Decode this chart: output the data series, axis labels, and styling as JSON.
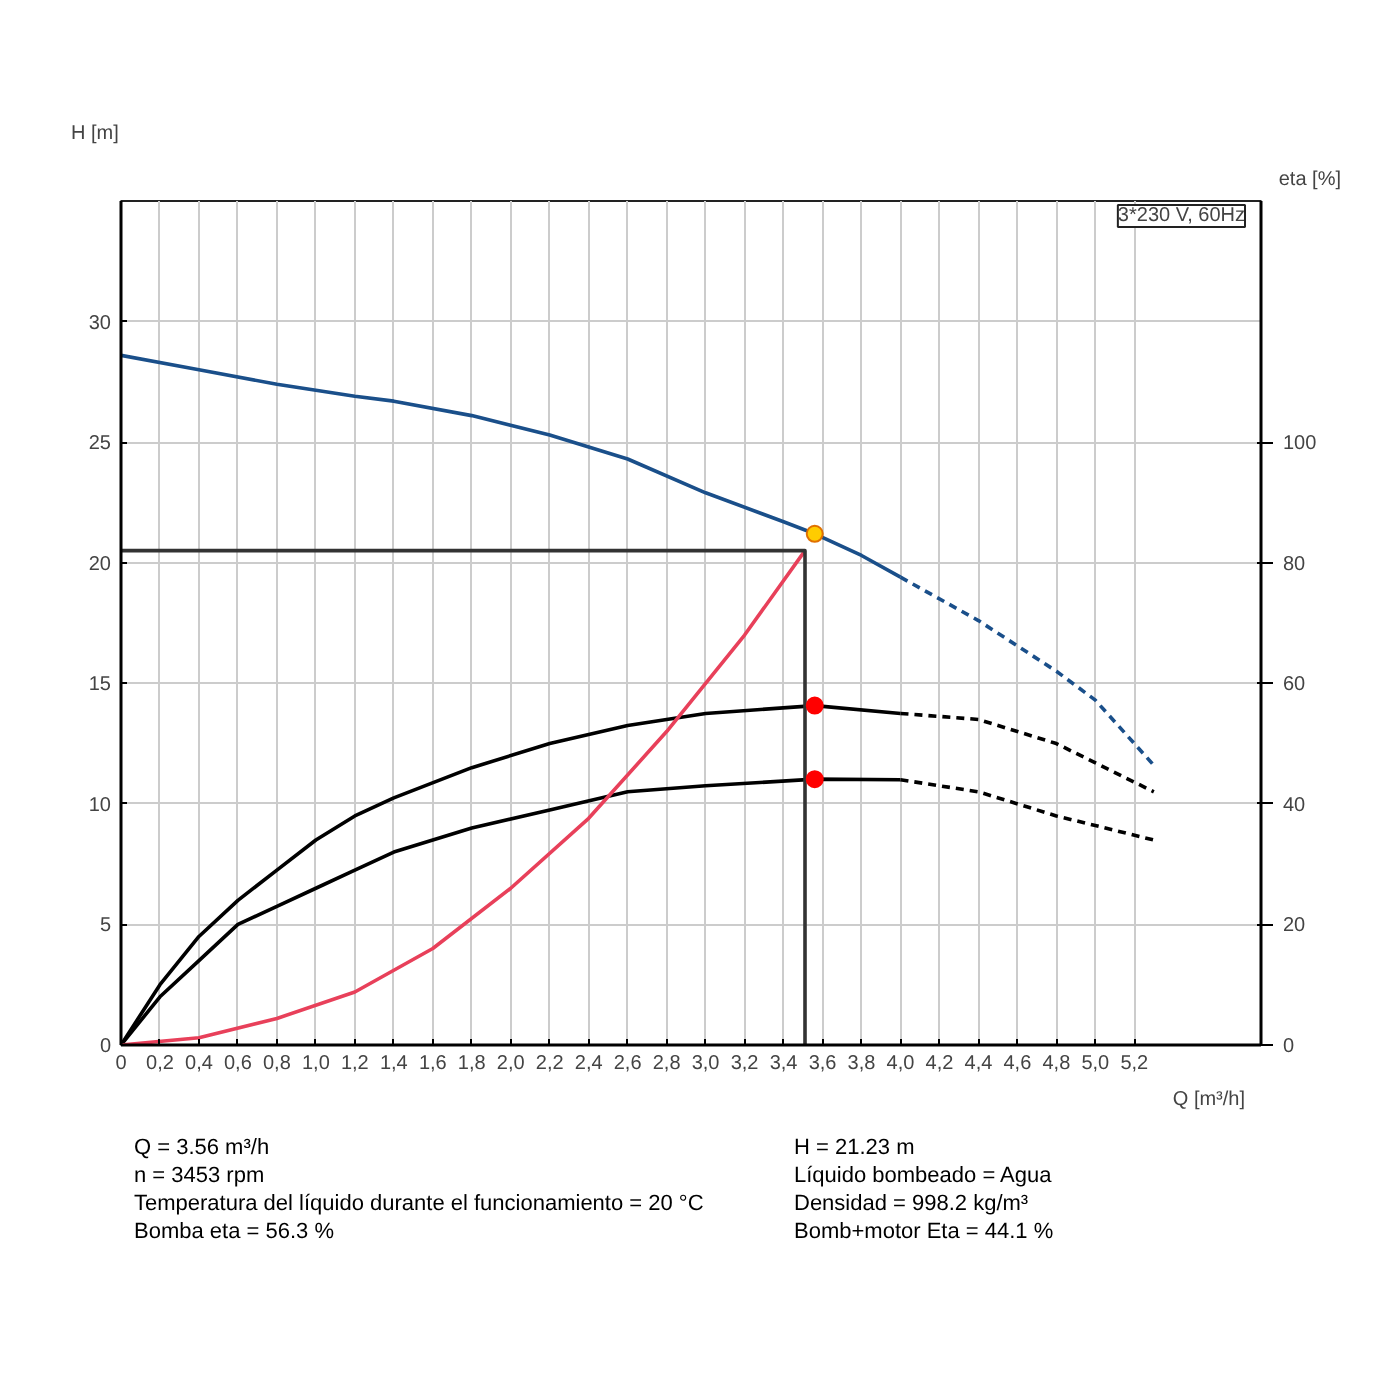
{
  "chart_data": {
    "type": "line",
    "xlabel": "Q [m³/h]",
    "ylabel": "H [m]",
    "y2label": "eta [%]",
    "xlim": [
      0,
      5.85
    ],
    "xticks": [
      0,
      {
        "value": 0.2,
        "label": "0,2"
      },
      {
        "value": 0.4,
        "label": "0,4"
      },
      {
        "value": 0.6,
        "label": "0,6"
      },
      {
        "value": 0.8,
        "label": "0,8"
      },
      {
        "value": 1.0,
        "label": "1,0"
      },
      {
        "value": 1.2,
        "label": "1,2"
      },
      {
        "value": 1.4,
        "label": "1,4"
      },
      {
        "value": 1.6,
        "label": "1,6"
      },
      {
        "value": 1.8,
        "label": "1,8"
      },
      {
        "value": 2.0,
        "label": "2,0"
      },
      {
        "value": 2.2,
        "label": "2,2"
      },
      {
        "value": 2.4,
        "label": "2,4"
      },
      {
        "value": 2.6,
        "label": "2,6"
      },
      {
        "value": 2.8,
        "label": "2,8"
      },
      {
        "value": 3.0,
        "label": "3,0"
      },
      {
        "value": 3.2,
        "label": "3,2"
      },
      {
        "value": 3.4,
        "label": "3,4"
      },
      {
        "value": 3.6,
        "label": "3,6"
      },
      {
        "value": 3.8,
        "label": "3,8"
      },
      {
        "value": 4.0,
        "label": "4,0"
      },
      {
        "value": 4.2,
        "label": "4,2"
      },
      {
        "value": 4.4,
        "label": "4,4"
      },
      {
        "value": 4.6,
        "label": "4,6"
      },
      {
        "value": 4.8,
        "label": "4,8"
      },
      {
        "value": 5.0,
        "label": "5,0"
      },
      {
        "value": 5.2,
        "label": "5,2"
      }
    ],
    "ylim": [
      0,
      35
    ],
    "yticks": [
      0,
      5,
      10,
      15,
      20,
      25,
      30
    ],
    "y2lim": [
      0,
      140
    ],
    "y2ticks": [
      0,
      20,
      40,
      60,
      80,
      100
    ],
    "grid": true,
    "series": [
      {
        "color": "#1a4f8a",
        "line_style": "solid",
        "x": [
          0,
          0.4,
          0.8,
          1.2,
          1.4,
          1.8,
          2.2,
          2.6,
          3.0,
          3.4,
          3.56,
          3.8,
          4.0
        ],
        "values": [
          28.6,
          28.0,
          27.4,
          26.9,
          26.7,
          26.1,
          25.3,
          24.3,
          22.9,
          21.7,
          21.2,
          20.3,
          19.4
        ]
      },
      {
        "color": "#1a4f8a",
        "line_style": "dashed",
        "x": [
          4.0,
          4.4,
          4.8,
          5.0,
          5.3
        ],
        "values": [
          19.4,
          17.6,
          15.5,
          14.3,
          11.6
        ]
      },
      {
        "color": "#000000",
        "axis": "y2",
        "line_style": "solid",
        "x": [
          0,
          0.2,
          0.4,
          0.6,
          0.8,
          1.0,
          1.2,
          1.4,
          1.8,
          2.2,
          2.6,
          3.0,
          3.56,
          4.0
        ],
        "values": [
          0,
          10,
          18,
          24,
          29,
          34,
          38,
          41,
          46,
          50,
          53,
          55,
          56.3,
          55
        ]
      },
      {
        "color": "#000000",
        "axis": "y2",
        "line_style": "dashed",
        "x": [
          4.0,
          4.4,
          4.8,
          5.3
        ],
        "values": [
          55,
          54,
          50,
          42
        ]
      },
      {
        "color": "#000000",
        "axis": "y2",
        "line_style": "solid",
        "x": [
          0,
          0.2,
          0.4,
          0.6,
          0.8,
          1.0,
          1.2,
          1.4,
          1.8,
          2.2,
          2.6,
          3.0,
          3.56,
          4.0
        ],
        "values": [
          0,
          8,
          14,
          20,
          23,
          26,
          29,
          32,
          36,
          39,
          42,
          43,
          44.1,
          44
        ]
      },
      {
        "color": "#000000",
        "axis": "y2",
        "line_style": "dashed",
        "x": [
          4.0,
          4.4,
          4.8,
          5.3
        ],
        "values": [
          44,
          42,
          38,
          34
        ]
      },
      {
        "color": "#e8405a",
        "line_style": "solid",
        "x": [
          0,
          0.4,
          0.8,
          1.2,
          1.6,
          2.0,
          2.4,
          2.8,
          3.2,
          3.51
        ],
        "values": [
          0,
          0.3,
          1.1,
          2.2,
          4.0,
          6.5,
          9.4,
          13.0,
          17.0,
          20.5
        ]
      },
      {
        "color": "#333333",
        "line_style": "solid",
        "x": [
          0,
          3.51,
          3.51
        ],
        "values": [
          20.5,
          20.5,
          0
        ]
      },
      {
        "type": "scatter",
        "marker": "circle",
        "color": "#ffcc00",
        "x": [
          3.56
        ],
        "values": [
          21.2
        ]
      },
      {
        "type": "scatter",
        "marker": "circle",
        "color": "#ff0000",
        "axis": "y2",
        "x": [
          3.56,
          3.56
        ],
        "values": [
          56.3,
          44.1
        ]
      }
    ],
    "annotations": [
      "3*230 V, 60Hz",
      "Q = 3.56 m³/h",
      "H = 21.23 m",
      "n = 3453 rpm",
      "Líquido bombeado = Agua",
      "Temperatura del líquido durante el funcionamiento = 20 °C",
      "Densidad = 998.2 kg/m³",
      "Bomba eta = 56.3 %",
      "Bomb+motor Eta = 44.1 %"
    ]
  }
}
